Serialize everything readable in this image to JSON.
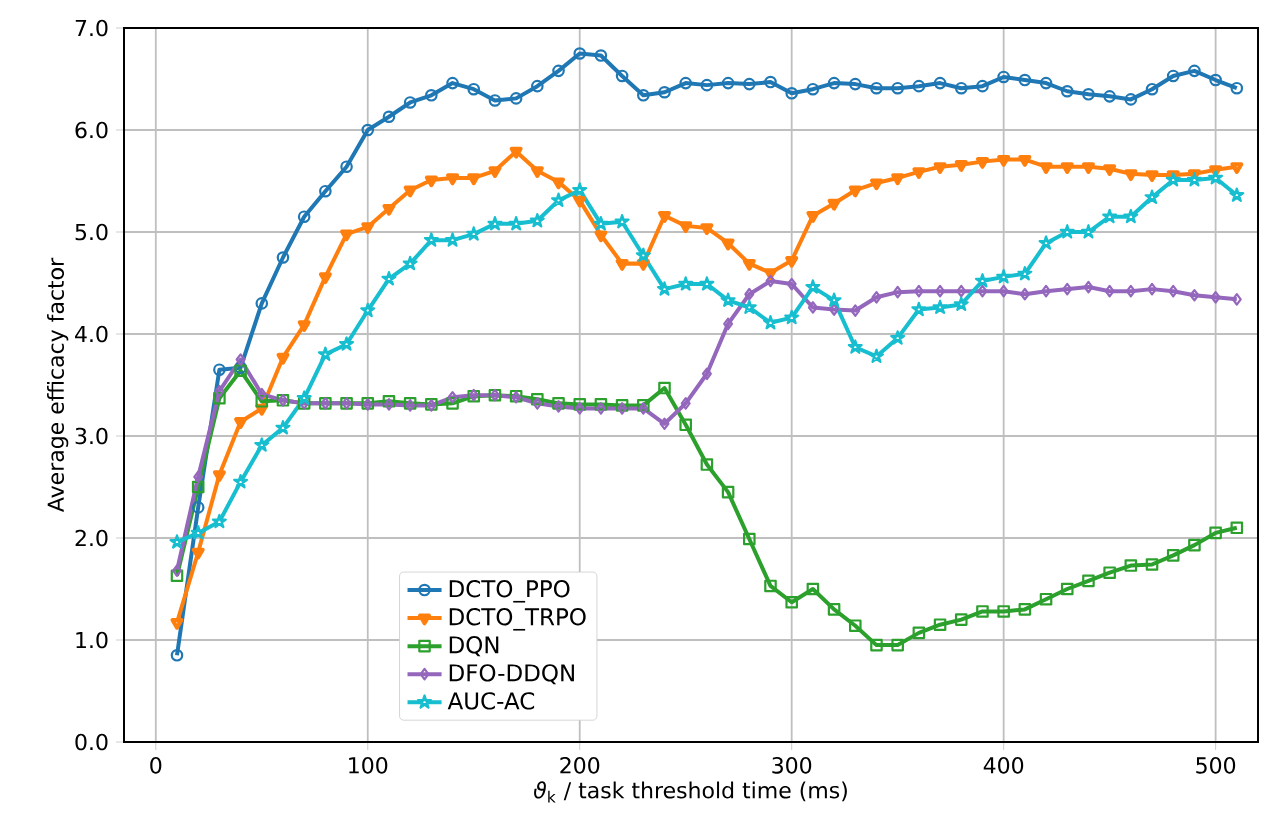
{
  "chart_data": {
    "type": "line",
    "xlabel": "*ϑ*$_{k}$ / task threshold time (ms)",
    "ylabel": "Average efficacy factor",
    "x": [
      10,
      20,
      30,
      40,
      50,
      60,
      70,
      80,
      90,
      100,
      110,
      120,
      130,
      140,
      150,
      160,
      170,
      180,
      190,
      200,
      210,
      220,
      230,
      240,
      250,
      260,
      270,
      280,
      290,
      300,
      310,
      320,
      330,
      340,
      350,
      360,
      370,
      380,
      390,
      400,
      410,
      420,
      430,
      440,
      450,
      460,
      470,
      480,
      490,
      500,
      510
    ],
    "xlim": [
      -15,
      520
    ],
    "xticks": [
      0,
      100,
      200,
      300,
      400,
      500
    ],
    "ylim": [
      0,
      7
    ],
    "yticks": [
      {
        "value": 0,
        "label": "0.0"
      },
      {
        "value": 1,
        "label": "1.0"
      },
      {
        "value": 2,
        "label": "2.0"
      },
      {
        "value": 3,
        "label": "3.0"
      },
      {
        "value": 4,
        "label": "4.0"
      },
      {
        "value": 5,
        "label": "5.0"
      },
      {
        "value": 6,
        "label": "6.0"
      },
      {
        "value": 7,
        "label": "7.0"
      }
    ],
    "grid": true,
    "legend": "bottom",
    "line_style": "solid",
    "series": [
      {
        "name": "DCTO_PPO",
        "color": "#1f77b4",
        "marker": "circle",
        "values": [
          0.85,
          2.3,
          3.65,
          3.67,
          4.3,
          4.75,
          5.15,
          5.4,
          5.64,
          6.0,
          6.13,
          6.27,
          6.34,
          6.46,
          6.4,
          6.29,
          6.31,
          6.43,
          6.58,
          6.75,
          6.73,
          6.53,
          6.34,
          6.37,
          6.46,
          6.44,
          6.46,
          6.45,
          6.47,
          6.36,
          6.4,
          6.46,
          6.45,
          6.41,
          6.41,
          6.43,
          6.46,
          6.41,
          6.43,
          6.52,
          6.49,
          6.46,
          6.38,
          6.35,
          6.33,
          6.3,
          6.4,
          6.53,
          6.58,
          6.49,
          6.41
        ]
      },
      {
        "name": "DCTO_TRPO",
        "color": "#ff7f0e",
        "marker": "triangle",
        "values": [
          1.17,
          1.86,
          2.62,
          3.14,
          3.27,
          3.77,
          4.09,
          4.56,
          4.98,
          5.05,
          5.23,
          5.41,
          5.51,
          5.53,
          5.53,
          5.6,
          5.79,
          5.6,
          5.49,
          5.31,
          4.97,
          4.69,
          4.69,
          5.16,
          5.06,
          5.04,
          4.89,
          4.69,
          4.6,
          4.72,
          5.16,
          5.28,
          5.41,
          5.48,
          5.53,
          5.59,
          5.64,
          5.66,
          5.69,
          5.71,
          5.71,
          5.64,
          5.64,
          5.64,
          5.62,
          5.57,
          5.56,
          5.56,
          5.57,
          5.61,
          5.64
        ]
      },
      {
        "name": "DQN",
        "color": "#2ca02c",
        "marker": "square",
        "values": [
          1.63,
          2.5,
          3.37,
          3.64,
          3.34,
          3.35,
          3.32,
          3.32,
          3.32,
          3.32,
          3.34,
          3.32,
          3.31,
          3.32,
          3.39,
          3.4,
          3.39,
          3.36,
          3.32,
          3.31,
          3.31,
          3.3,
          3.3,
          3.47,
          3.11,
          2.72,
          2.45,
          1.99,
          1.53,
          1.37,
          1.5,
          1.3,
          1.14,
          0.95,
          0.95,
          1.07,
          1.15,
          1.2,
          1.28,
          1.28,
          1.3,
          1.4,
          1.5,
          1.58,
          1.66,
          1.73,
          1.74,
          1.83,
          1.93,
          2.05,
          2.1
        ]
      },
      {
        "name": "DFO-DDQN",
        "color": "#9467bd",
        "marker": "diamond",
        "values": [
          1.68,
          2.6,
          3.44,
          3.75,
          3.41,
          3.35,
          3.32,
          3.32,
          3.32,
          3.31,
          3.31,
          3.3,
          3.3,
          3.38,
          3.4,
          3.4,
          3.38,
          3.32,
          3.29,
          3.27,
          3.27,
          3.27,
          3.27,
          3.12,
          3.32,
          3.61,
          4.1,
          4.39,
          4.52,
          4.49,
          4.26,
          4.24,
          4.23,
          4.36,
          4.41,
          4.42,
          4.42,
          4.42,
          4.42,
          4.42,
          4.39,
          4.42,
          4.44,
          4.46,
          4.42,
          4.42,
          4.44,
          4.42,
          4.38,
          4.36,
          4.34
        ]
      },
      {
        "name": "AUC-AC",
        "color": "#17becf",
        "marker": "star",
        "values": [
          1.96,
          2.05,
          2.16,
          2.55,
          2.91,
          3.08,
          3.37,
          3.8,
          3.9,
          4.23,
          4.54,
          4.69,
          4.92,
          4.92,
          4.98,
          5.08,
          5.08,
          5.11,
          5.31,
          5.41,
          5.08,
          5.1,
          4.77,
          4.44,
          4.49,
          4.49,
          4.33,
          4.26,
          4.11,
          4.16,
          4.46,
          4.33,
          3.87,
          3.78,
          3.96,
          4.24,
          4.26,
          4.29,
          4.52,
          4.56,
          4.59,
          4.89,
          5.0,
          5.0,
          5.15,
          5.15,
          5.34,
          5.51,
          5.51,
          5.53,
          5.36
        ]
      }
    ]
  }
}
